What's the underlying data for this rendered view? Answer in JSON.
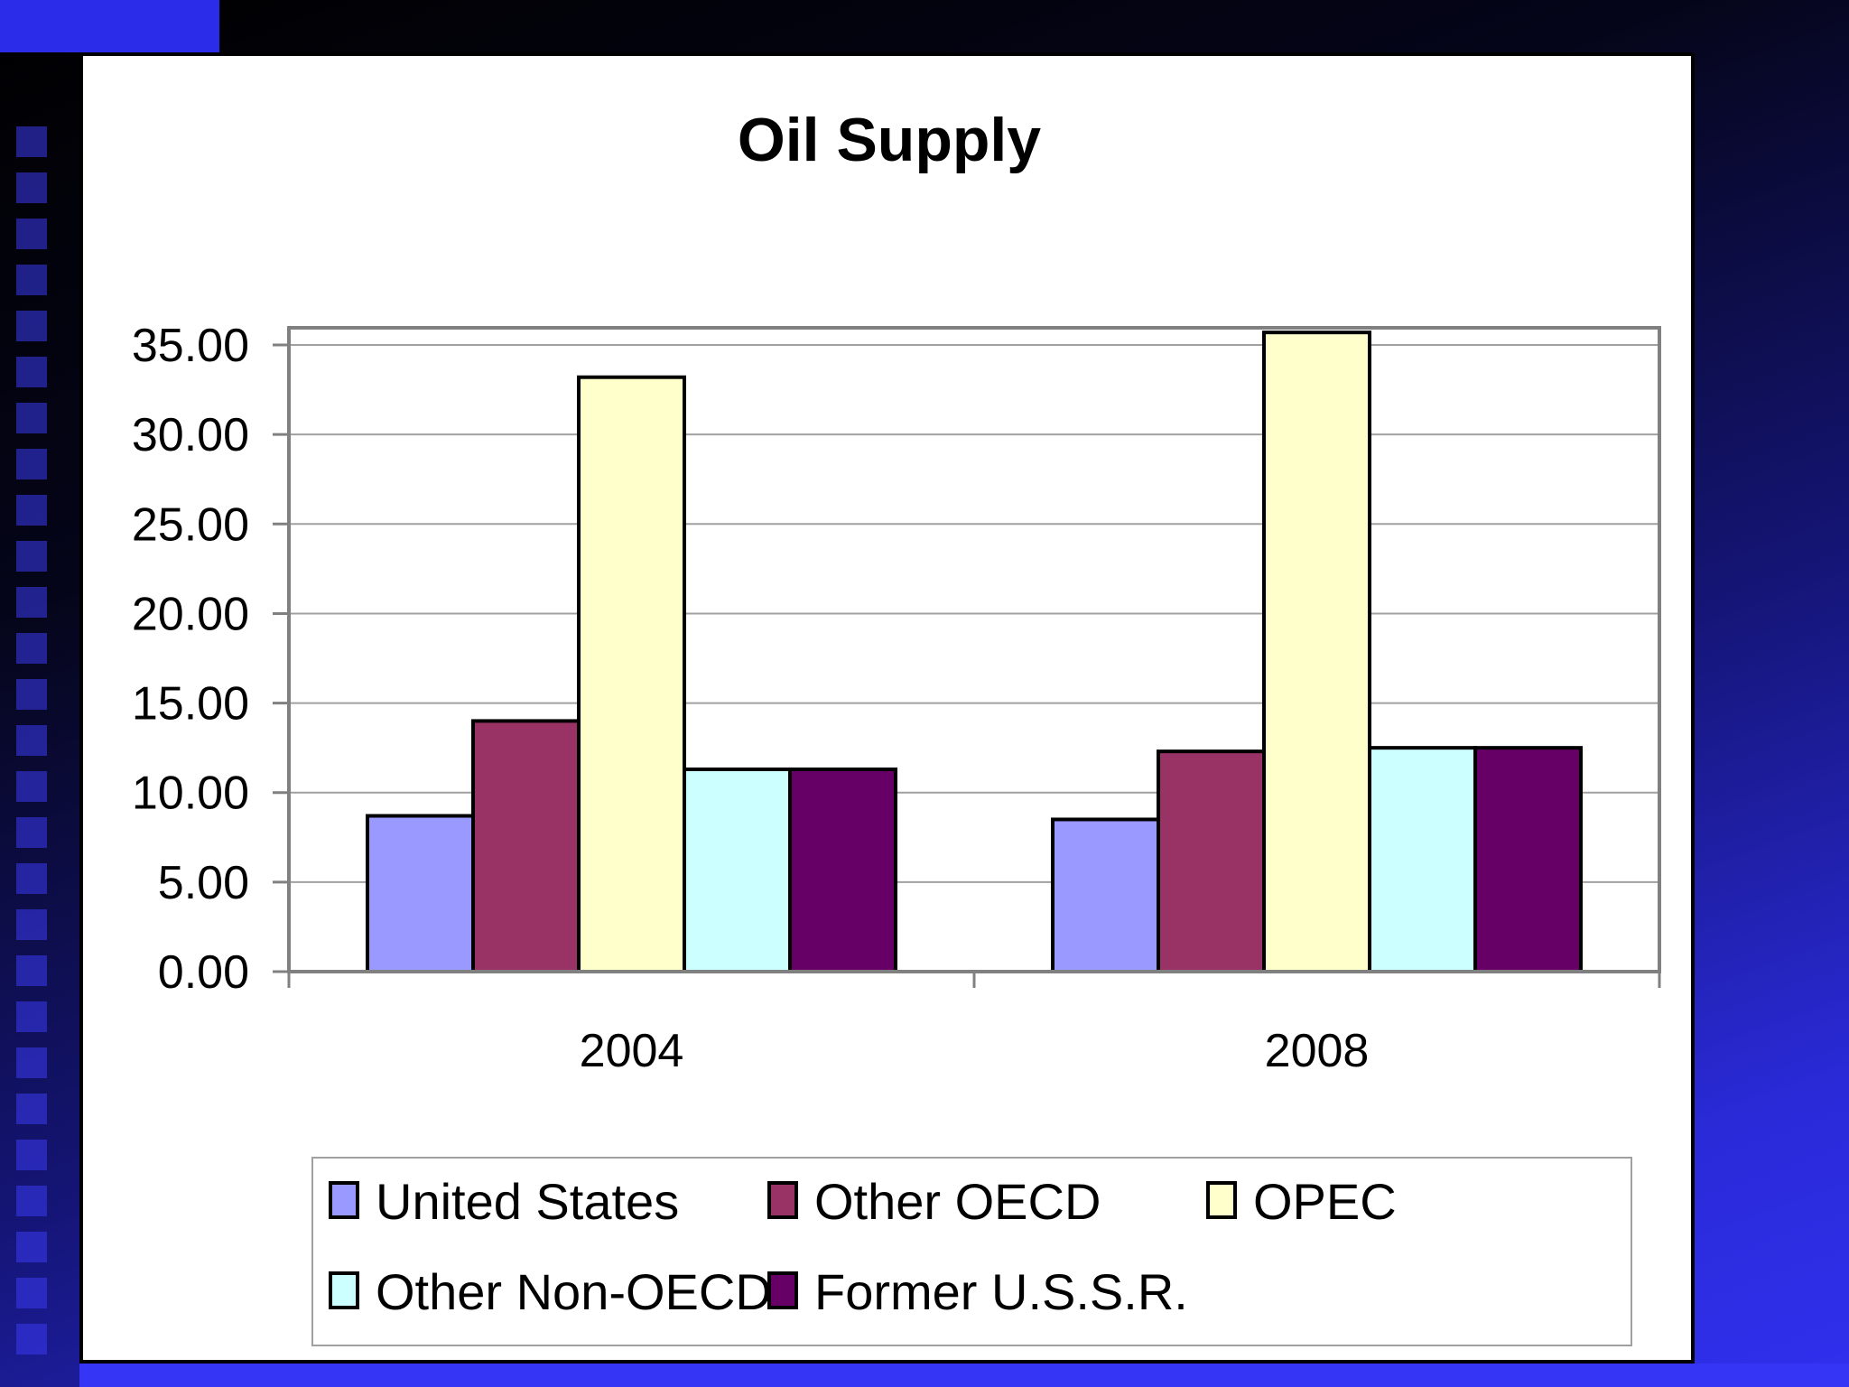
{
  "chart_data": {
    "type": "bar",
    "title": "Oil Supply",
    "xlabel": "",
    "ylabel": "",
    "categories": [
      "2004",
      "2008"
    ],
    "ylim": [
      0,
      35
    ],
    "yticks": [
      "0.00",
      "5.00",
      "10.00",
      "15.00",
      "20.00",
      "25.00",
      "30.00",
      "35.00"
    ],
    "grid": true,
    "legend_position": "bottom",
    "series": [
      {
        "name": "United States",
        "color": "#9999ff",
        "values": [
          8.7,
          8.5
        ]
      },
      {
        "name": "Other OECD",
        "color": "#993366",
        "values": [
          14.0,
          12.3
        ]
      },
      {
        "name": "OPEC",
        "color": "#ffffcc",
        "values": [
          33.2,
          35.7
        ]
      },
      {
        "name": "Other Non-OECD",
        "color": "#ccffff",
        "values": [
          11.3,
          12.5
        ]
      },
      {
        "name": "Former U.S.S.R.",
        "color": "#660066",
        "values": [
          11.3,
          12.5
        ]
      }
    ]
  }
}
